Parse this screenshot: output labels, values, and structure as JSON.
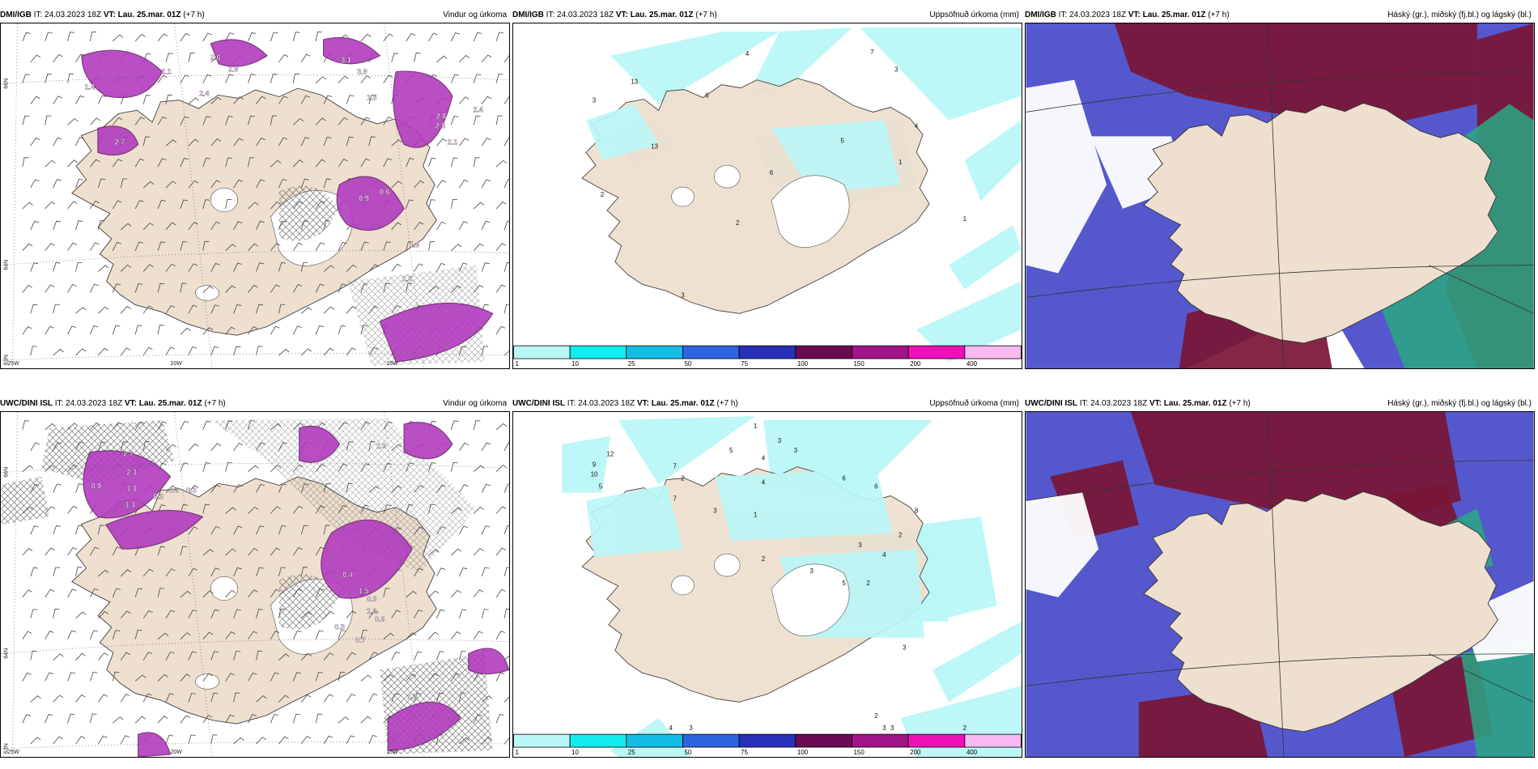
{
  "colors": {
    "land": "#eedfcf",
    "precip": "#b9f7f7",
    "wind_purple": "#b23bbf",
    "deep_purple": "#6b2a6b",
    "cloud_high": "#7a1535",
    "cloud_mid": "#5558cc",
    "cloud_low": "#2aa882"
  },
  "panels": [
    {
      "model": "DMI/IGB",
      "it": "IT: 24.03.2023 18Z",
      "vt": "VT: Lau. 25.mar. 01Z",
      "offset": "(+7 h)",
      "title": "Vindur og úrkoma"
    },
    {
      "model": "DMI/IGB",
      "it": "IT: 24.03.2023 18Z",
      "vt": "VT: Lau. 25.mar. 01Z",
      "offset": "(+7 h)",
      "title": "Uppsöfnuð úrkoma (mm)"
    },
    {
      "model": "DMI/IGB",
      "it": "IT: 24.03.2023 18Z",
      "vt": "VT: Lau. 25.mar. 01Z",
      "offset": "(+7 h)",
      "title": "Háský (gr.), miðský (fj.bl.) og lágský (bl.)"
    },
    {
      "model": "UWC/DINI ISL",
      "it": "IT: 24.03.2023 18Z",
      "vt": "VT: Lau. 25.mar. 01Z",
      "offset": "(+7 h)",
      "title": "Vindur og úrkoma"
    },
    {
      "model": "UWC/DINI ISL",
      "it": "IT: 24.03.2023 18Z",
      "vt": "VT: Lau. 25.mar. 01Z",
      "offset": "(+7 h)",
      "title": "Uppsöfnuð úrkoma (mm)"
    },
    {
      "model": "UWC/DINI ISL",
      "it": "IT: 24.03.2023 18Z",
      "vt": "VT: Lau. 25.mar. 01Z",
      "offset": "(+7 h)",
      "title": "Háský (gr.), miðský (fj.bl.) og lágský (bl.)"
    }
  ],
  "grid_labels": {
    "lat": [
      "66N",
      "64N",
      "63N"
    ],
    "lon": [
      "25W",
      "20W",
      "15W"
    ]
  },
  "colorbar": {
    "ticks": [
      "1",
      "10",
      "25",
      "50",
      "75",
      "100",
      "150",
      "200",
      "400"
    ],
    "colors": [
      "#b9f7f7",
      "#10eded",
      "#15bde6",
      "#2f64e0",
      "#2930b8",
      "#6a0b52",
      "#a01488",
      "#f010b8",
      "#f8b8f0"
    ]
  },
  "wind_values": {
    "top": [
      "1.4",
      "2.9",
      "2.4",
      "2.1",
      "2.6",
      "3.1",
      "3.9",
      "1.5",
      "2.7",
      "2.8",
      "2.4",
      "2.8",
      "2.1",
      "0.9",
      "0.6",
      "1.9",
      "1.5"
    ],
    "bottom": [
      "2.7",
      "2.3",
      "0.9",
      "1.3",
      "0.4",
      "0.3",
      "1.3",
      "0.3",
      "1.9",
      "0.4",
      "1.5",
      "0.3",
      "1.2",
      "0.8",
      "0.3",
      "0.7",
      "1.3",
      "2.1"
    ]
  },
  "precip_values": {
    "top": [
      "4",
      "13",
      "3",
      "6",
      "13",
      "2",
      "7",
      "3",
      "4",
      "1",
      "5",
      "6",
      "1",
      "3",
      "2"
    ],
    "bottom": [
      "1",
      "3",
      "5",
      "2",
      "3",
      "4",
      "12",
      "9",
      "10",
      "5",
      "7",
      "7",
      "3",
      "4",
      "6",
      "6",
      "8",
      "2",
      "3",
      "4",
      "1",
      "2",
      "3",
      "5",
      "2",
      "3",
      "4",
      "2",
      "3",
      "3",
      "2",
      "3"
    ]
  }
}
